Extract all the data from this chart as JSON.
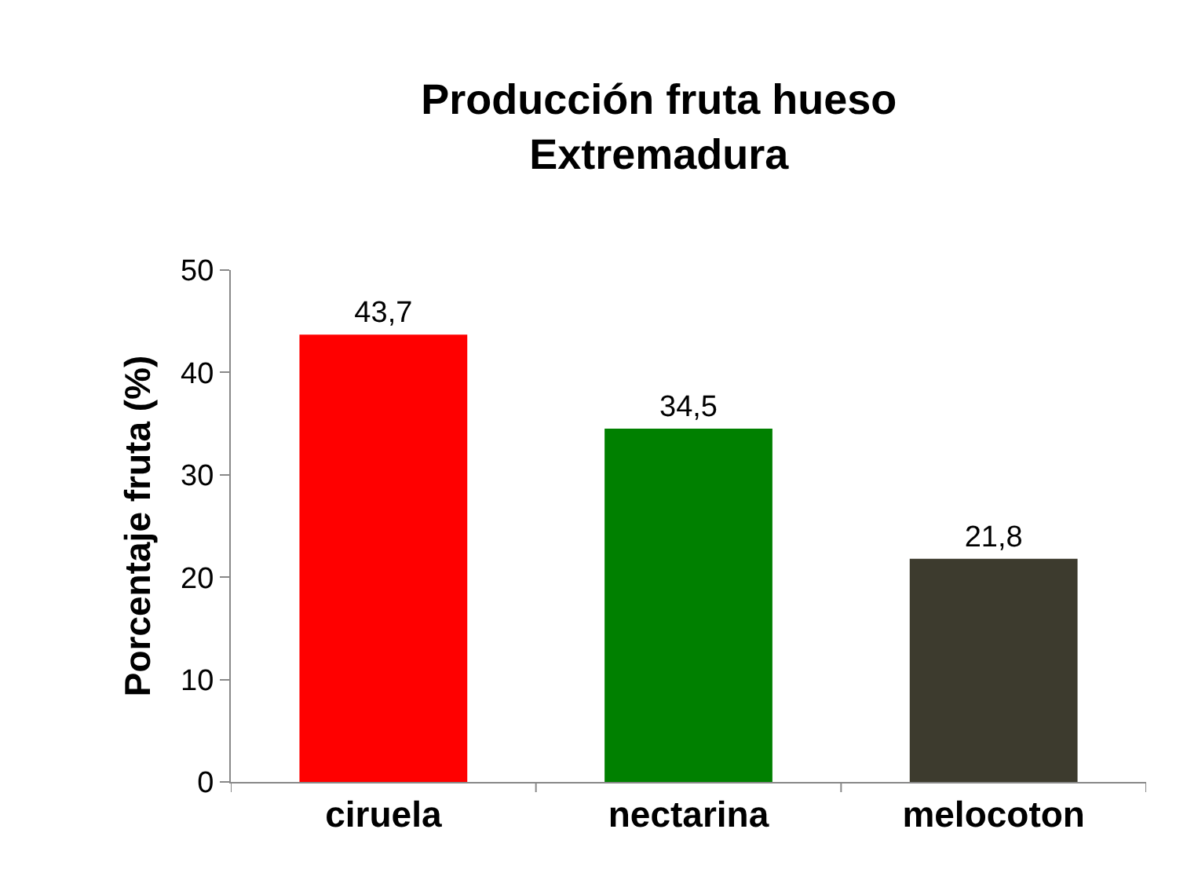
{
  "chart_data": {
    "type": "bar",
    "title": "Producción fruta hueso\nExtremadura",
    "ylabel": "Porcentaje fruta (%)",
    "categories": [
      "ciruela",
      "nectarina",
      "melocoton"
    ],
    "values": [
      43.7,
      34.5,
      21.8
    ],
    "colors": [
      "#ff0000",
      "#008000",
      "#3d3b2e"
    ],
    "value_labels": [
      "43,7",
      "34,5",
      "21,8"
    ],
    "ylim": [
      0,
      50
    ],
    "yticks": [
      0,
      10,
      20,
      30,
      40,
      50
    ],
    "grid": false,
    "legend": false
  }
}
